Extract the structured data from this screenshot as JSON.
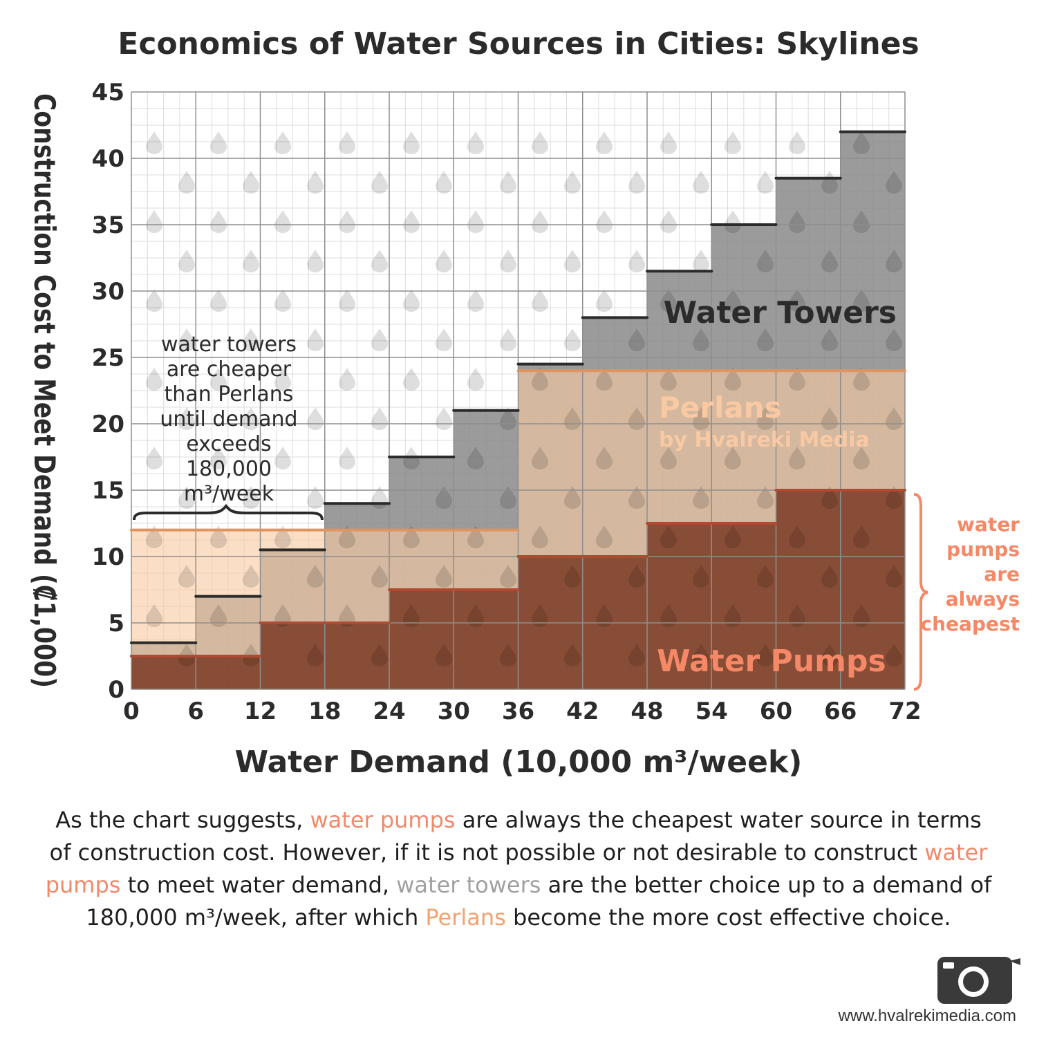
{
  "chart_data": {
    "type": "area",
    "title": "Economics of Water Sources in Cities: Skylines",
    "xlabel": "Water Demand (10,000 m³/week)",
    "ylabel": "Construction Cost to Meet Demand (₡1,000)",
    "xlim": [
      0,
      72
    ],
    "ylim": [
      0,
      45
    ],
    "x_ticks": [
      "0",
      "6",
      "12",
      "18",
      "24",
      "30",
      "36",
      "42",
      "48",
      "54",
      "60",
      "66",
      "72"
    ],
    "y_ticks": [
      "0",
      "5",
      "10",
      "15",
      "20",
      "25",
      "30",
      "35",
      "40",
      "45"
    ],
    "grid": true,
    "series": [
      {
        "name": "Water Towers",
        "color": "#8a8a8a",
        "step_width": 6,
        "values": [
          3.5,
          7,
          10.5,
          14,
          17.5,
          21,
          24.5,
          28,
          31.5,
          35,
          38.5,
          42
        ]
      },
      {
        "name": "Perlans",
        "subtitle": "by Hvalreki Media",
        "color": "#f7c9a1",
        "step_width": 36,
        "values": [
          12,
          24
        ]
      },
      {
        "name": "Water Pumps",
        "color": "#7a3a25",
        "step_width": 12,
        "values": [
          2.5,
          5,
          7.5,
          10,
          12.5,
          15
        ]
      }
    ],
    "annotations": {
      "towers_cheaper": [
        "water towers",
        "are cheaper",
        "than Perlans",
        "until demand",
        "exceeds",
        "180,000",
        "m³/week"
      ],
      "pumps_cheapest": [
        "water",
        "pumps",
        "are",
        "always",
        "cheapest"
      ]
    }
  },
  "caption": {
    "s1": "As the chart suggests, ",
    "pumps1": "water pumps",
    "s2": " are always the cheapest water source in terms of construction cost. However, if it is not possible or not desirable to construct ",
    "pumps2": "water pumps",
    "s3": " to meet water demand, ",
    "towers": "water towers",
    "s4": " are the better choice up to a demand of 180,000 m³/week, after which ",
    "perlans": "Perlans",
    "s5": " become the more cost effective choice."
  },
  "website": "www.hvalrekimedia.com",
  "logo_icon": "camera-icon"
}
